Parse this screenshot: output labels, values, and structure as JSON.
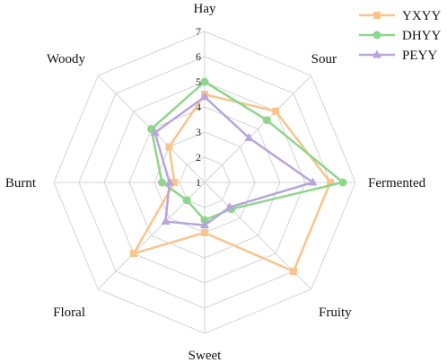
{
  "chart_data": {
    "type": "radar",
    "title": "",
    "axes": [
      "Hay",
      "Sour",
      "Fermented",
      "Fruity",
      "Sweet",
      "Floral",
      "Burnt",
      "Woody"
    ],
    "rlim": [
      1,
      7
    ],
    "ticks": [
      1,
      2,
      3,
      4,
      5,
      6,
      7
    ],
    "grid": true,
    "legend_position": "top-right",
    "series": [
      {
        "name": "YXYY",
        "color": "#F9C48E",
        "marker": "square",
        "values": [
          4.5,
          5.0,
          6.0,
          6.0,
          3.0,
          5.0,
          2.2,
          3.0
        ]
      },
      {
        "name": "DHYY",
        "color": "#8DD68A",
        "marker": "circle",
        "values": [
          5.0,
          4.5,
          6.5,
          2.5,
          2.5,
          2.0,
          2.7,
          4.0
        ]
      },
      {
        "name": "PEYY",
        "color": "#B9A5D9",
        "marker": "triangle",
        "values": [
          4.4,
          3.5,
          5.3,
          2.4,
          2.7,
          3.2,
          2.4,
          3.8
        ]
      }
    ]
  }
}
